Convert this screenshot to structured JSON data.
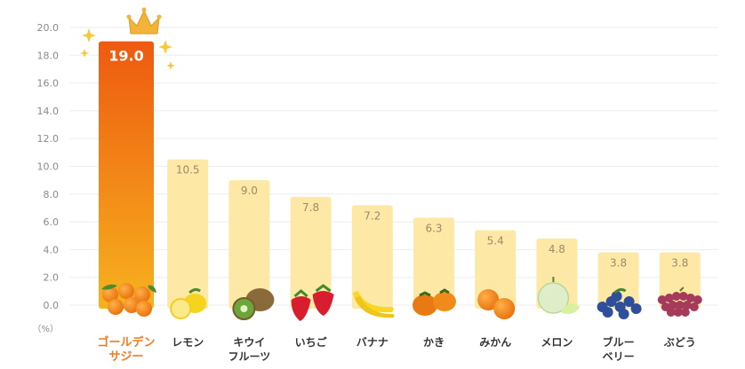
{
  "chart_data": {
    "type": "bar",
    "categories": [
      [
        "ゴールデン",
        "サジー"
      ],
      [
        "レモン"
      ],
      [
        "キウイ",
        "フルーツ"
      ],
      [
        "いちご"
      ],
      [
        "バナナ"
      ],
      [
        "かき"
      ],
      [
        "みかん"
      ],
      [
        "メロン"
      ],
      [
        "ブルー",
        "ベリー"
      ],
      [
        "ぶどう"
      ]
    ],
    "values": [
      19.0,
      10.5,
      9.0,
      7.8,
      7.2,
      6.3,
      5.4,
      4.8,
      3.8,
      3.8
    ],
    "value_labels": [
      "19.0",
      "10.5",
      "9.0",
      "7.8",
      "7.2",
      "6.3",
      "5.4",
      "4.8",
      "3.8",
      "3.8"
    ],
    "y_ticks": [
      "0.0",
      "2.0",
      "4.0",
      "6.0",
      "8.0",
      "10.0",
      "12.0",
      "14.0",
      "16.0",
      "18.0",
      "20.0"
    ],
    "ylim": [
      0,
      20
    ],
    "unit_label": "（%）",
    "grid": true,
    "highlight_index": 0,
    "colors": {
      "bar": "#fde8a6",
      "highlight_top": "#f6a21c",
      "highlight_bottom": "#ee5a10",
      "highlight_text": "#f07a1c",
      "grid": "#eeeeee"
    }
  }
}
